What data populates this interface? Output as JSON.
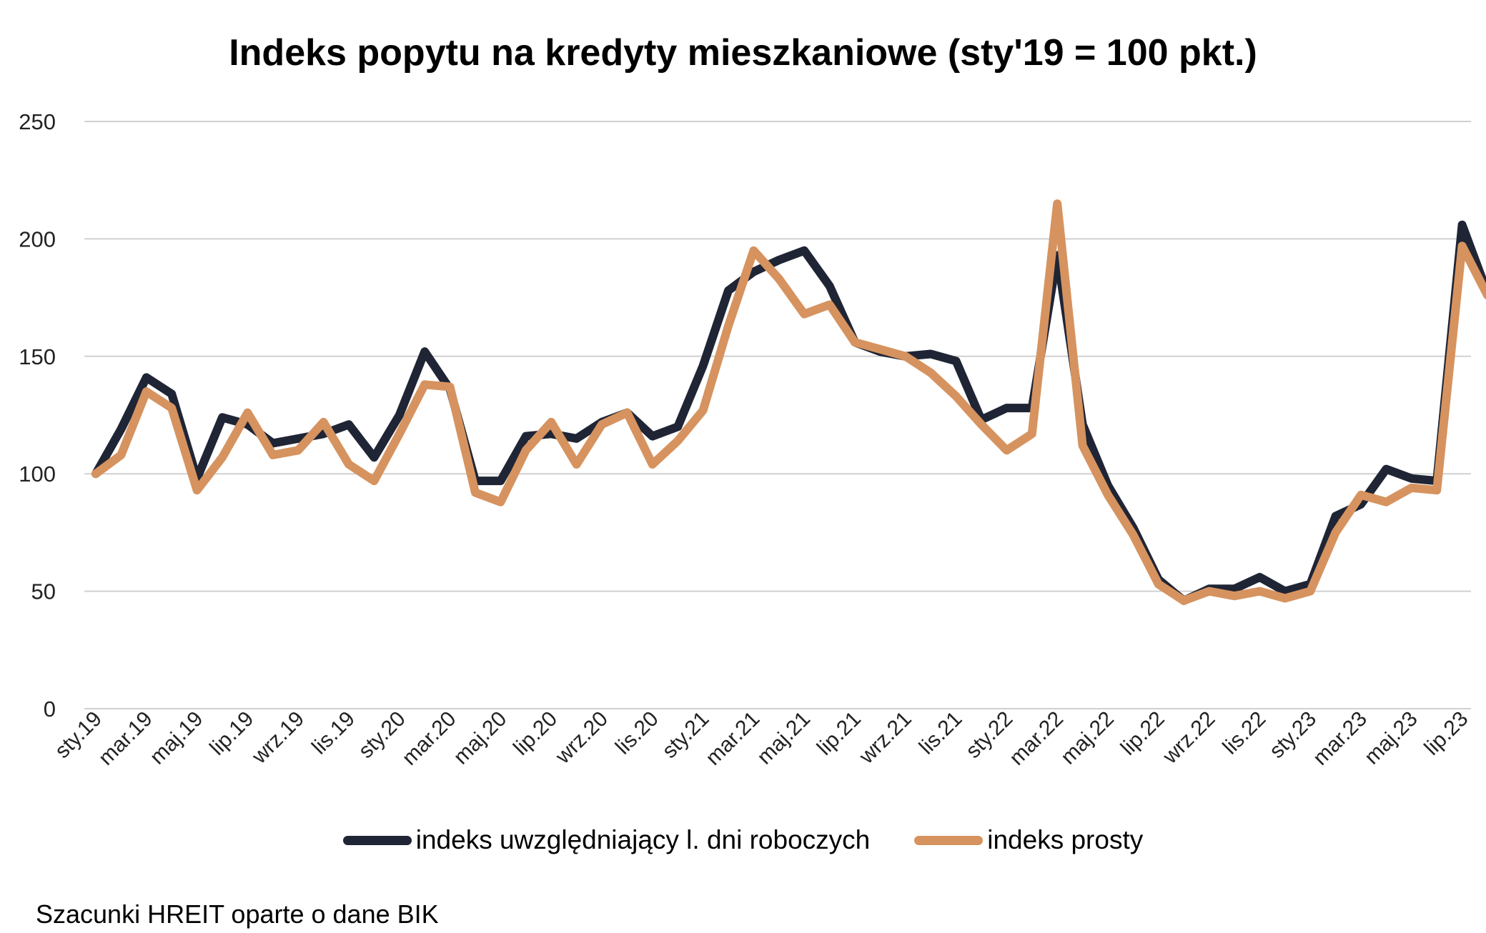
{
  "chart_data": {
    "type": "line",
    "title": "Indeks popytu na kredyty mieszkaniowe (sty'19 = 100 pkt.)",
    "xlabel": "",
    "ylabel": "",
    "ylim": [
      0,
      250
    ],
    "yticks": [
      "0",
      "50",
      "100",
      "150",
      "200",
      "250"
    ],
    "grid": true,
    "legend_position": "bottom",
    "x": [
      "sty.19",
      "lut.19",
      "mar.19",
      "kwi.19",
      "maj.19",
      "cze.19",
      "lip.19",
      "sie.19",
      "wrz.19",
      "paź.19",
      "lis.19",
      "gru.19",
      "sty.20",
      "lut.20",
      "mar.20",
      "kwi.20",
      "maj.20",
      "cze.20",
      "lip.20",
      "sie.20",
      "wrz.20",
      "paź.20",
      "lis.20",
      "gru.20",
      "sty.21",
      "lut.21",
      "mar.21",
      "kwi.21",
      "maj.21",
      "cze.21",
      "lip.21",
      "sie.21",
      "wrz.21",
      "paź.21",
      "lis.21",
      "gru.21",
      "sty.22",
      "lut.22",
      "mar.22",
      "kwi.22",
      "maj.22",
      "cze.22",
      "lip.22",
      "sie.22",
      "wrz.22",
      "paź.22",
      "lis.22",
      "gru.22",
      "sty.23",
      "lut.23",
      "mar.23",
      "kwi.23",
      "maj.23",
      "cze.23",
      "lip.23",
      "sie.23"
    ],
    "x_tick_labels": [
      "sty.19",
      "mar.19",
      "maj.19",
      "lip.19",
      "wrz.19",
      "lis.19",
      "sty.20",
      "mar.20",
      "maj.20",
      "lip.20",
      "wrz.20",
      "lis.20",
      "sty.21",
      "mar.21",
      "maj.21",
      "lip.21",
      "wrz.21",
      "lis.21",
      "sty.22",
      "mar.22",
      "maj.22",
      "lip.22",
      "wrz.22",
      "lis.22",
      "sty.23",
      "mar.23",
      "maj.23",
      "lip.23"
    ],
    "series": [
      {
        "name": "indeks uwzględniający l. dni roboczych",
        "color": "#1f2535",
        "values": [
          100,
          119,
          141,
          134,
          98,
          124,
          121,
          113,
          115,
          117,
          121,
          107,
          125,
          152,
          136,
          97,
          97,
          116,
          117,
          115,
          122,
          126,
          116,
          120,
          146,
          178,
          186,
          191,
          195,
          180,
          156,
          152,
          150,
          151,
          148,
          123,
          128,
          128,
          193,
          121,
          95,
          77,
          55,
          46,
          51,
          51,
          56,
          50,
          53,
          82,
          87,
          102,
          98,
          97,
          206,
          177
        ]
      },
      {
        "name": "indeks prosty",
        "color": "#d6935f",
        "values": [
          100,
          108,
          135,
          128,
          93,
          107,
          126,
          108,
          110,
          122,
          104,
          97,
          117,
          138,
          137,
          92,
          88,
          110,
          122,
          104,
          121,
          126,
          104,
          114,
          127,
          163,
          195,
          183,
          168,
          172,
          156,
          153,
          150,
          143,
          133,
          121,
          110,
          117,
          215,
          112,
          91,
          74,
          53,
          46,
          50,
          48,
          50,
          47,
          50,
          75,
          91,
          88,
          94,
          93,
          197,
          176
        ]
      }
    ]
  },
  "source_note": "Szacunki HREIT oparte o dane BIK"
}
